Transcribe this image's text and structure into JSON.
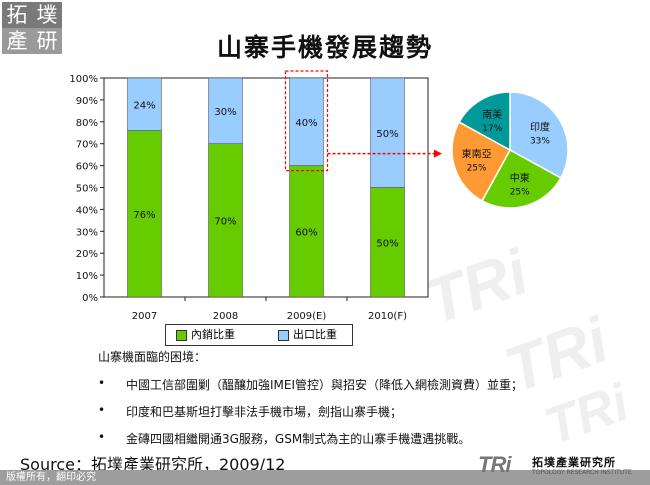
{
  "logo": {
    "chars": [
      "拓",
      "墣",
      "產",
      "研"
    ]
  },
  "header": {
    "title": "山寨手機發展趨勢"
  },
  "watermark": {
    "text": "TRi"
  },
  "chart_data": [
    {
      "type": "bar",
      "stacked": true,
      "categories": [
        "2007",
        "2008",
        "2009(E)",
        "2010(F)"
      ],
      "series": [
        {
          "name": "內銷比重",
          "values": [
            76,
            70,
            60,
            50
          ],
          "labels": [
            "76%",
            "70%",
            "60%",
            "50%"
          ],
          "color": "#66cc00"
        },
        {
          "name": "出口比重",
          "values": [
            24,
            30,
            40,
            50
          ],
          "labels": [
            "24%",
            "30%",
            "40%",
            "50%"
          ],
          "color": "#99ccff"
        }
      ],
      "yticks": [
        "0%",
        "10%",
        "20%",
        "30%",
        "40%",
        "50%",
        "60%",
        "70%",
        "80%",
        "90%",
        "100%"
      ],
      "ylim": [
        0,
        100
      ],
      "grid": false,
      "legend": "bottom",
      "highlight_category": "2009(E)",
      "highlight_color": "#ff0000"
    },
    {
      "type": "pie",
      "slices": [
        {
          "label": "印度",
          "value": 33,
          "text": "33%",
          "color": "#99ccff"
        },
        {
          "label": "中東",
          "value": 25,
          "text": "25%",
          "color": "#66cc00"
        },
        {
          "label": "東南亞",
          "value": 25,
          "text": "25%",
          "color": "#ff9933"
        },
        {
          "label": "南美",
          "value": 17,
          "text": "17%",
          "color": "#009999"
        }
      ]
    }
  ],
  "notes": {
    "heading": "山寨機面臨的困境：",
    "bullet_char": "•",
    "items": [
      "中國工信部圍剿（醞釀加強IMEI管控）與招安（降低入網檢測資費）並重；",
      "印度和巴基斯坦打擊非法手機市場，劍指山寨手機；",
      "金磚四國相繼開通3G服務，GSM制式為主的山寨手機遭遇挑戰。"
    ]
  },
  "footer": {
    "source": "Source：拓墣產業研究所，2009/12",
    "copyright": "版權所有，翻印必究",
    "brand_mark": "TRi",
    "brand_name": "拓墣產業研究所",
    "brand_sub": "TOPOLOGY RESEARCH INSTITUTE"
  },
  "colors": {
    "logo_top": "#7a7a7a",
    "logo_bottom": "#9a9a9a",
    "logo_accent": "#d4a017",
    "footer_bar": "#9d9d9d"
  }
}
